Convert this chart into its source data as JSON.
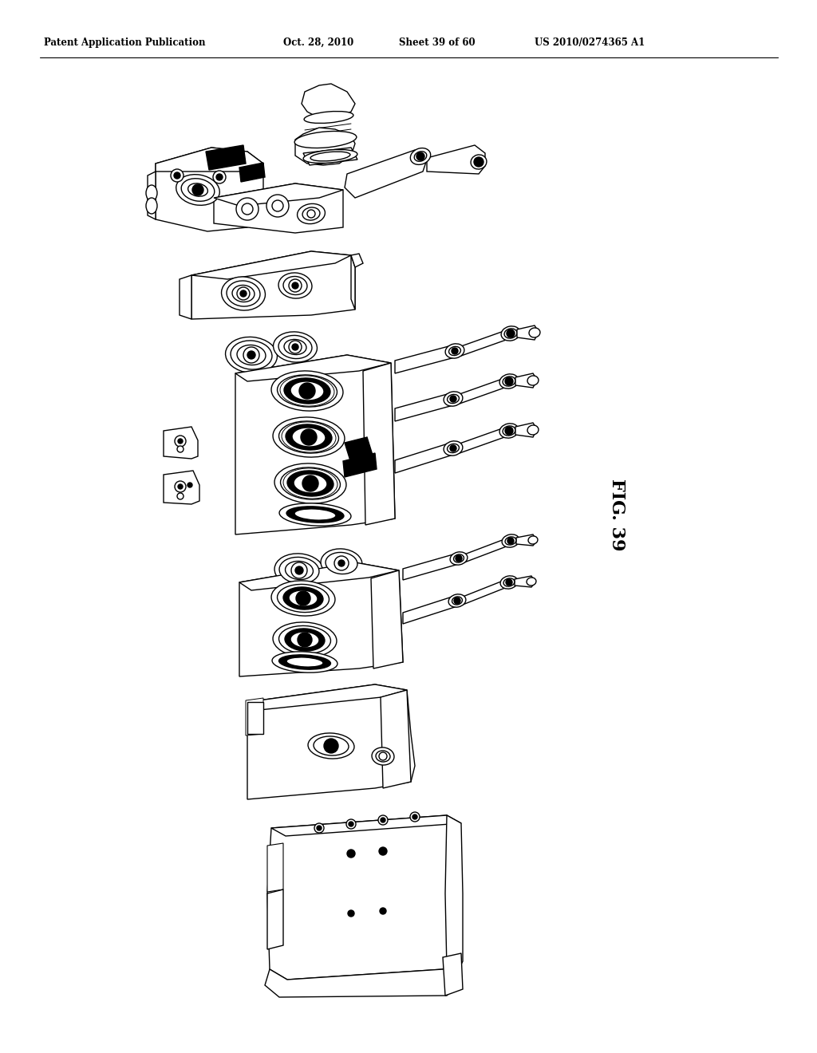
{
  "patent_line1": "Patent Application Publication",
  "patent_line2": "Oct. 28, 2010",
  "patent_line3": "Sheet 39 of 60",
  "patent_line4": "US 2010/0274365 A1",
  "fig_label": "FIG. 39",
  "background_color": "#ffffff",
  "line_color": "#000000",
  "figsize": [
    10.24,
    13.2
  ],
  "dpi": 100
}
